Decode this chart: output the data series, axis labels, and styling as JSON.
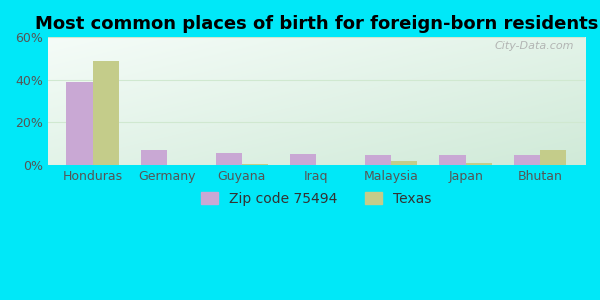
{
  "title": "Most common places of birth for foreign-born residents",
  "categories": [
    "Honduras",
    "Germany",
    "Guyana",
    "Iraq",
    "Malaysia",
    "Japan",
    "Bhutan"
  ],
  "zip_values": [
    39,
    7,
    5.5,
    5,
    4.5,
    4.5,
    4.5
  ],
  "texas_values": [
    49,
    0,
    0.5,
    0,
    2,
    1,
    7
  ],
  "zip_color": "#c9a8d4",
  "texas_color": "#c4cc8a",
  "ylim": [
    0,
    60
  ],
  "yticks": [
    0,
    20,
    40,
    60
  ],
  "ytick_labels": [
    "0%",
    "20%",
    "40%",
    "60%"
  ],
  "legend_zip_label": "Zip code 75494",
  "legend_texas_label": "Texas",
  "background_outer": "#00e8f8",
  "bg_top_left": "#f5fcf8",
  "bg_bottom_right": "#d0ead8",
  "watermark": "City-Data.com",
  "title_fontsize": 13,
  "axis_label_fontsize": 9,
  "legend_fontsize": 10,
  "grid_color": "#d0e8d0",
  "bar_width": 0.35
}
